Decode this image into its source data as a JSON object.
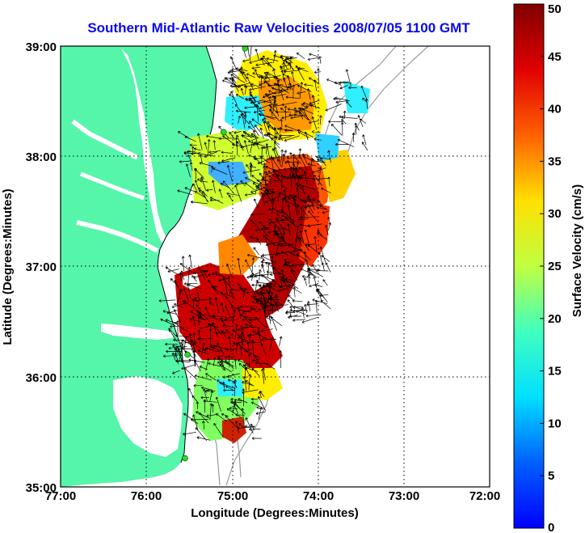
{
  "title": "Southern Mid-Atlantic Raw Velocities 2008/07/05 1100 GMT",
  "x_axis": {
    "label": "Longitude (Degrees:Minutes)",
    "ticks": [
      "77:00",
      "76:00",
      "75:00",
      "74:00",
      "73:00",
      "72:00"
    ]
  },
  "y_axis": {
    "label": "Latitude (Degrees:Minutes)",
    "ticks": [
      "39:00",
      "38:00",
      "37:00",
      "36:00",
      "35:00"
    ]
  },
  "colorbar": {
    "label": "Surface Velocity (cm/s)",
    "ticks": [
      "50",
      "45",
      "40",
      "35",
      "30",
      "25",
      "20",
      "15",
      "10",
      "5",
      "0"
    ],
    "range_cm_s": [
      0,
      50
    ]
  },
  "map": {
    "lon_range": [
      -77,
      -72
    ],
    "lat_range": [
      35,
      39
    ],
    "grid": "dotted",
    "land_color": "#55f5aa",
    "contour_color": "#9a9a9a",
    "station_color": "#22dd22",
    "stations": [
      {
        "lon": -74.85,
        "lat": 38.98
      },
      {
        "lon": -75.1,
        "lat": 38.22
      },
      {
        "lon": -75.52,
        "lat": 36.2
      },
      {
        "lon": -75.55,
        "lat": 35.26
      }
    ]
  }
}
